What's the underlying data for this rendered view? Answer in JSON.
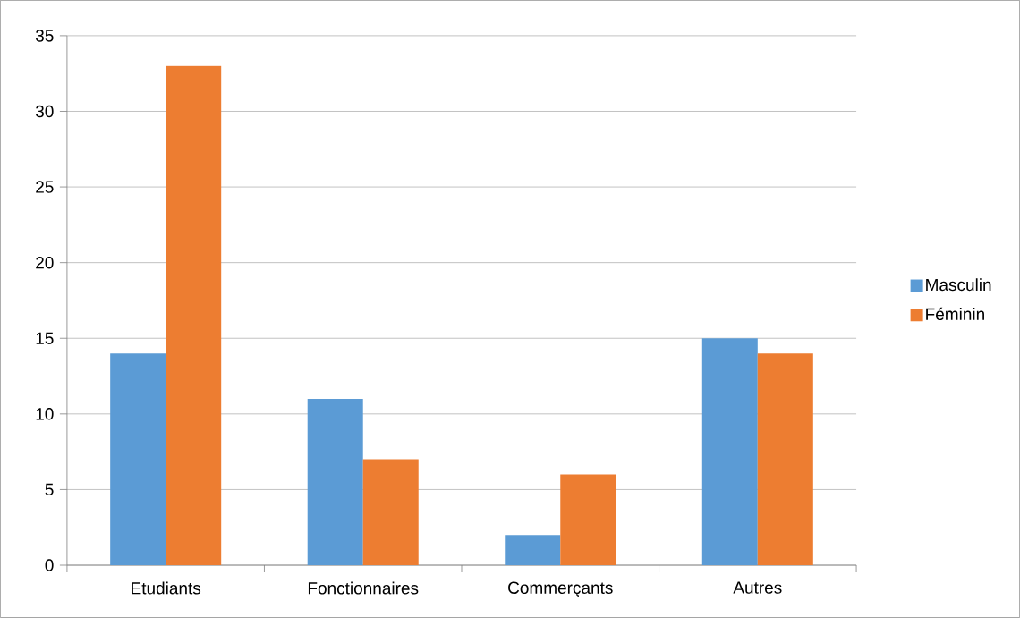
{
  "chart_data": {
    "type": "bar",
    "categories": [
      "Etudiants",
      "Fonctionnaires",
      "Commerçants",
      "Autres"
    ],
    "series": [
      {
        "name": "Masculin",
        "color": "#5b9bd5",
        "values": [
          14,
          11,
          2,
          15
        ]
      },
      {
        "name": "Féminin",
        "color": "#ed7d31",
        "values": [
          33,
          7,
          6,
          14
        ]
      }
    ],
    "ylim": [
      0,
      35
    ],
    "yticks": [
      0,
      5,
      10,
      15,
      20,
      25,
      30,
      35
    ],
    "grid": "y",
    "legend": "right"
  }
}
